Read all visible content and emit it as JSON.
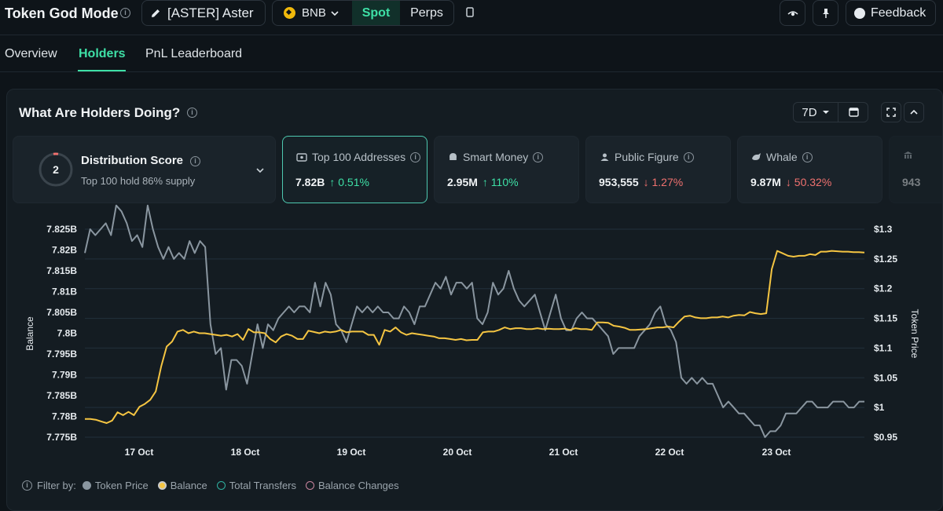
{
  "header": {
    "app_title": "Token God Mode",
    "token_label": "[ASTER] Aster",
    "chain": "BNB",
    "market_tabs": [
      "Spot",
      "Perps"
    ],
    "feedback_label": "Feedback"
  },
  "tabs": [
    {
      "label": "Overview"
    },
    {
      "label": "Holders",
      "active": true
    },
    {
      "label": "PnL Leaderboard"
    }
  ],
  "panel": {
    "title": "What Are Holders Doing?",
    "range": "7D"
  },
  "distribution": {
    "score": "2",
    "title": "Distribution Score",
    "subtitle": "Top 100 hold 86% supply"
  },
  "cards": [
    {
      "label": "Top 100 Addresses",
      "value": "7.82B",
      "change": "↑ 0.51%",
      "direction": "up",
      "icon": "wallet-icon",
      "selected": true
    },
    {
      "label": "Smart Money",
      "value": "2.95M",
      "change": "↑ 110%",
      "direction": "up",
      "icon": "brain-icon"
    },
    {
      "label": "Public Figure",
      "value": "953,555",
      "change": "↓ 1.27%",
      "direction": "down",
      "icon": "person-icon"
    },
    {
      "label": "Whale",
      "value": "9.87M",
      "change": "↓ 50.32%",
      "direction": "down",
      "icon": "whale-icon"
    },
    {
      "label": "",
      "value": "943",
      "icon": "bank-icon"
    }
  ],
  "chart_data": {
    "type": "line",
    "ylabel_left": "Balance",
    "ylabel_right": "Token Price",
    "left_ticks": [
      "7.825B",
      "7.82B",
      "7.815B",
      "7.81B",
      "7.805B",
      "7.8B",
      "7.795B",
      "7.79B",
      "7.785B",
      "7.78B",
      "7.775B"
    ],
    "right_ticks": [
      "$1.3",
      "$1.25",
      "$1.2",
      "$1.15",
      "$1.1",
      "$1.05",
      "$1",
      "$0.95"
    ],
    "x_ticks": [
      "17 Oct",
      "18 Oct",
      "19 Oct",
      "20 Oct",
      "21 Oct",
      "22 Oct",
      "23 Oct"
    ],
    "left_range": [
      7.775,
      7.825
    ],
    "right_range": [
      0.95,
      1.3
    ],
    "series": [
      {
        "name": "Balance",
        "color": "#f5c542",
        "axis": "left",
        "values": [
          7.7794,
          7.7794,
          7.7792,
          7.7788,
          7.7784,
          7.779,
          7.781,
          7.7803,
          7.7811,
          7.7803,
          7.7823,
          7.783,
          7.784,
          7.786,
          7.792,
          7.7968,
          7.798,
          7.8004,
          7.8008,
          7.8,
          7.8004,
          7.8,
          7.8,
          7.7998,
          7.7996,
          7.7994,
          7.7996,
          7.7992,
          7.7998,
          7.7984,
          7.801,
          7.8002,
          7.8002,
          7.8,
          7.7986,
          7.7978,
          7.7992,
          7.7998,
          7.7994,
          7.7986,
          7.7986,
          7.8006,
          7.8003,
          7.8,
          7.8004,
          7.8002,
          7.8004,
          7.8008,
          7.8002,
          7.8004,
          7.8004,
          7.8004,
          7.7996,
          7.7996,
          7.7972,
          7.8008,
          7.8004,
          7.8014,
          7.8002,
          7.7996,
          7.8,
          7.7998,
          7.7996,
          7.7994,
          7.7992,
          7.7988,
          7.7988,
          7.7986,
          7.7984,
          7.7986,
          7.7983,
          7.7984,
          7.7984,
          7.8002,
          7.8004,
          7.8004,
          7.8008,
          7.8014,
          7.801,
          7.8012,
          7.8012,
          7.801,
          7.801,
          7.8012,
          7.801,
          7.8011,
          7.801,
          7.801,
          7.8011,
          7.8008,
          7.8012,
          7.801,
          7.801,
          7.8008,
          7.8026,
          7.8026,
          7.8025,
          7.8018,
          7.8016,
          7.8013,
          7.8008,
          7.8008,
          7.8009,
          7.801,
          7.8012,
          7.8014,
          7.8014,
          7.8016,
          7.8014,
          7.8028,
          7.804,
          7.8042,
          7.8038,
          7.8036,
          7.8036,
          7.8038,
          7.8038,
          7.804,
          7.8038,
          7.8042,
          7.8044,
          7.8043,
          7.8051,
          7.8048,
          7.8046,
          7.8048,
          7.8154,
          7.8198,
          7.8192,
          7.8186,
          7.8184,
          7.8186,
          7.8186,
          7.819,
          7.8188,
          7.8196,
          7.8196,
          7.8198,
          7.8197,
          7.8196,
          7.8196,
          7.8195,
          7.8195,
          7.8194
        ]
      },
      {
        "name": "Token Price",
        "color": "#8a96a0",
        "axis": "right",
        "values": [
          1.26,
          1.3,
          1.29,
          1.3,
          1.31,
          1.29,
          1.34,
          1.33,
          1.31,
          1.28,
          1.29,
          1.27,
          1.34,
          1.3,
          1.27,
          1.25,
          1.27,
          1.25,
          1.26,
          1.25,
          1.28,
          1.26,
          1.28,
          1.27,
          1.14,
          1.09,
          1.1,
          1.03,
          1.08,
          1.08,
          1.07,
          1.04,
          1.09,
          1.14,
          1.1,
          1.14,
          1.13,
          1.15,
          1.16,
          1.17,
          1.16,
          1.17,
          1.17,
          1.16,
          1.21,
          1.17,
          1.21,
          1.19,
          1.14,
          1.13,
          1.11,
          1.14,
          1.17,
          1.16,
          1.17,
          1.16,
          1.17,
          1.16,
          1.16,
          1.15,
          1.15,
          1.17,
          1.16,
          1.14,
          1.17,
          1.17,
          1.19,
          1.21,
          1.2,
          1.22,
          1.19,
          1.21,
          1.21,
          1.2,
          1.21,
          1.15,
          1.14,
          1.16,
          1.21,
          1.19,
          1.2,
          1.23,
          1.2,
          1.18,
          1.17,
          1.18,
          1.19,
          1.16,
          1.13,
          1.16,
          1.19,
          1.15,
          1.13,
          1.13,
          1.15,
          1.16,
          1.15,
          1.15,
          1.14,
          1.13,
          1.12,
          1.09,
          1.1,
          1.1,
          1.1,
          1.1,
          1.12,
          1.13,
          1.14,
          1.16,
          1.17,
          1.14,
          1.13,
          1.11,
          1.05,
          1.04,
          1.05,
          1.04,
          1.05,
          1.04,
          1.04,
          1.02,
          1.0,
          1.01,
          1.0,
          0.99,
          0.99,
          0.98,
          0.97,
          0.97,
          0.95,
          0.96,
          0.96,
          0.97,
          0.99,
          0.99,
          0.99,
          1.0,
          1.01,
          1.01,
          1.0,
          1.0,
          1.0,
          1.01,
          1.01,
          1.01,
          1.0,
          1.0,
          1.01,
          1.01
        ]
      }
    ],
    "grid": true
  },
  "filters": {
    "label": "Filter by:",
    "items": [
      {
        "label": "Token Price",
        "color": "#8a96a0",
        "style": "filled"
      },
      {
        "label": "Balance",
        "color": "#f5c542",
        "style": "ring"
      },
      {
        "label": "Total Transfers",
        "color": "#2fb0a0",
        "style": "outline"
      },
      {
        "label": "Balance Changes",
        "color": "#c9849e",
        "style": "outline"
      }
    ]
  }
}
